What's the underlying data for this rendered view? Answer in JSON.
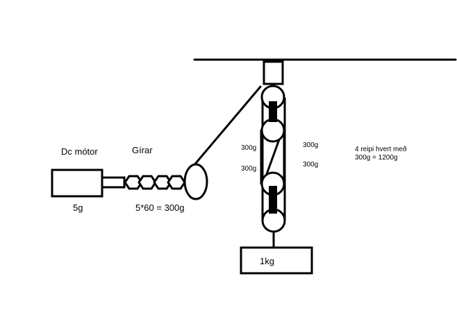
{
  "labels": {
    "motor": "Dc mótor",
    "gears": "Gírar",
    "motor_mass": "5g",
    "gear_calc": "5*60 = 300g",
    "rope_left_top": "300g",
    "rope_left_bottom": "300g",
    "rope_right_top": "300g",
    "rope_right_bottom": "300g",
    "note_line1": "4 reipi hvert með",
    "note_line2": "300g = 1200g",
    "load_mass": "1kg"
  }
}
